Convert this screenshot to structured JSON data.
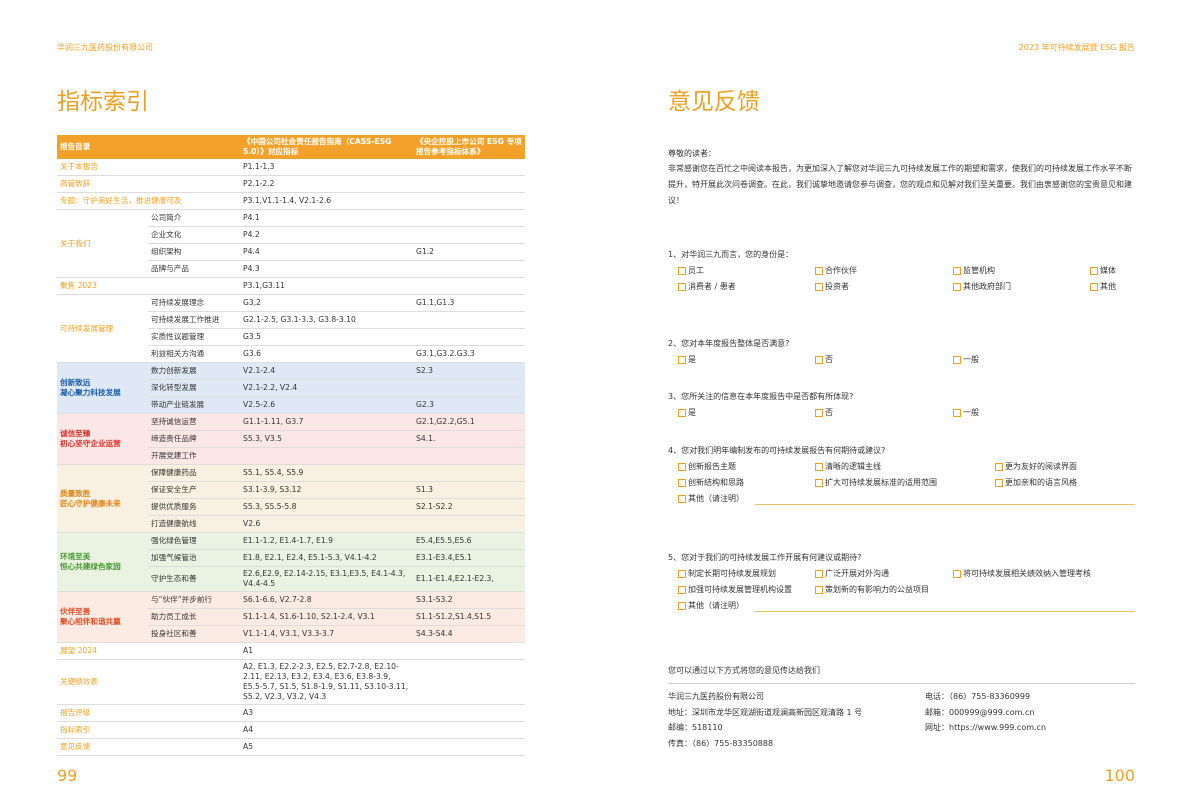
{
  "header": {
    "company": "华润三九医药股份有限公司",
    "report": "2023 年可持续发展暨 ESG 报告"
  },
  "index_page": {
    "title": "指标索引",
    "page_number": "99",
    "table": {
      "headers": [
        "报告目录",
        "《中国公司社会责任报告指南（CASS-ESG 5.0）》对应指标",
        "《央企控股上市公司 ESG 专项报告参考指标体系》"
      ],
      "sections": [
        {
          "title": "关于本报告",
          "cass": "P1.1-1.3"
        },
        {
          "title": "高管致辞",
          "cass": "P2.1-2.2"
        },
        {
          "title": "专题：守护美好生活，推进健康可及",
          "cass": "P3.1,V1.1-1.4, V2.1-2.6"
        },
        {
          "title": "关于我们",
          "items": [
            {
              "item": "公司简介",
              "cass": "P4.1"
            },
            {
              "item": "企业文化",
              "cass": "P4.2"
            },
            {
              "item": "组织架构",
              "cass": "P4.4",
              "sase": "G1.2"
            },
            {
              "item": "品牌与产品",
              "cass": "P4.3"
            }
          ]
        },
        {
          "title": "聚焦 2023",
          "cass": "P3.1,G3.11"
        },
        {
          "title": "可持续发展管理",
          "items": [
            {
              "item": "可持续发展理念",
              "cass": "G3,2",
              "sase": "G1.1,G1.3"
            },
            {
              "item": "可持续发展工作推进",
              "cass": "G2.1-2.5, G3.1-3.3, G3.8-3.10"
            },
            {
              "item": "实质性议题管理",
              "cass": "G3.5"
            },
            {
              "item": "利益相关方沟通",
              "cass": "G3.6",
              "sase": "G3.1,G3.2.G3.3"
            }
          ]
        },
        {
          "title": "创新致远\n凝心聚力科技发展",
          "color": "#1b5ca8",
          "background": "#dfe9f5",
          "items": [
            {
              "item": "数力创新发展",
              "cass": "V2.1-2.4",
              "sase": "S2.3"
            },
            {
              "item": "深化转型发展",
              "cass": "V2.1-2.2, V2.4"
            },
            {
              "item": "带动产业链发展",
              "cass": "V2.5-2.6",
              "sase": "G2.3"
            }
          ]
        },
        {
          "title": "诚信至臻\n初心坚守企业运营",
          "color": "#d8322b",
          "background": "#fbe7e6",
          "items": [
            {
              "item": "坚持诚信运营",
              "cass": "G1.1-1.11, G3.7",
              "sase": "G2.1,G2.2,G5.1"
            },
            {
              "item": "缔造责任品牌",
              "cass": "S5.3, V3.5",
              "sase": "S4.1."
            },
            {
              "item": "开展党建工作"
            }
          ]
        },
        {
          "title": "质量致胜\n匠心守护健康未来",
          "color": "#e0861a",
          "background": "#f8f0e1",
          "items": [
            {
              "item": "保障健康药品",
              "cass": "S5.1, S5.4, S5.9"
            },
            {
              "item": "保证安全生产",
              "cass": "S3.1-3.9, S3.12",
              "sase": "S1.3"
            },
            {
              "item": "提供优质服务",
              "cass": "S5.3, S5.5-5.8",
              "sase": "S2.1-S2.2"
            },
            {
              "item": "打造健康航线",
              "cass": "V2.6"
            }
          ]
        },
        {
          "title": "环境至美\n恒心共建绿色家园",
          "color": "#4c9a37",
          "background": "#eaf3e2",
          "items": [
            {
              "item": "强化绿色管理",
              "cass": "E1.1-1.2, E1.4-1.7, E1.9",
              "sase": "E5.4,E5.5,E5.6"
            },
            {
              "item": "加强气候管治",
              "cass": "E1.8, E2.1, E2.4, E5.1-5.3, V4.1-4.2",
              "sase": "E3.1-E3.4,E5.1"
            },
            {
              "item": "守护生态和善",
              "cass": "E2.6,E2.9, E2.14-2.15, E3.1,E3.5, E4.1-4.3, V4.4-4.5",
              "sase": "E1.1-E1.4,E2.1-E2.3,"
            }
          ]
        },
        {
          "title": "伙伴至善\n聚心相伴和谐共赢",
          "color": "#e0522a",
          "background": "#fbebe3",
          "items": [
            {
              "item": "与“伙伴”并步前行",
              "cass": "S6.1-6.6, V2.7-2.8",
              "sase": "S3.1-S3.2"
            },
            {
              "item": "助力员工成长",
              "cass": "S1.1-1.4, S1.6-1.10, S2.1-2.4, V3.1",
              "sase": "S1.1-S1.2,S1.4,S1.5"
            },
            {
              "item": "投身社区和善",
              "cass": "V1.1-1.4, V3.1, V3.3-3.7",
              "sase": "S4.3-S4.4"
            }
          ]
        },
        {
          "title": "展望 2024",
          "cass": "A1"
        },
        {
          "title": "关键绩效表",
          "cass": "A2, E1.3, E2.2-2.3, E2.5, E2.7-2.8, E2.10-2.11, E2.13, E3.2, E3.4, E3.6, E3.8-3.9, E5.5-5.7, S1.5, S1.8-1.9, S1.11, S3.10-3.11, S5.2, V2.3, V3.2,  V4.3"
        },
        {
          "title": "报告评级",
          "cass": "A3"
        },
        {
          "title": "指标索引",
          "cass": "A4"
        },
        {
          "title": "意见反馈",
          "cass": "A5"
        }
      ]
    }
  },
  "feedback_page": {
    "title": "意见反馈",
    "page_number": "100",
    "greeting": "尊敬的读者：",
    "intro": "非常感谢您在百忙之中阅读本报告，为更加深入了解您对华润三九可持续发展工作的期望和需求，使我们的可持续发展工作水平不断提升，特开展此次问卷调查。在此，我们诚挚地邀请您参与调查，您的观点和见解对我们至关重要。我们由衷感谢您的宝贵意见和建议！",
    "questions": [
      {
        "question": "1、对华润三九而言，您的身份是：",
        "options": [
          "员工",
          "合作伙伴",
          "监管机构",
          "媒体",
          "消费者 / 患者",
          "投资者",
          "其他政府部门",
          "其他"
        ]
      },
      {
        "question": "2、您对本年度报告整体是否满意?",
        "options": [
          "是",
          "否",
          "一般"
        ]
      },
      {
        "question": "3、您所关注的信息在本年度报告中是否都有所体现?",
        "options": [
          "是",
          "否",
          "一般"
        ]
      },
      {
        "question": "4、您对我们明年编制发布的可持续发展报告有何期待或建议?",
        "options": [
          "创新报告主题",
          "清晰的逻辑主线",
          "更为友好的阅读界面",
          "创新结构和思路",
          "扩大可持续发展标准的适用范围",
          "更加亲和的语言风格"
        ],
        "other": "其他（请注明）"
      },
      {
        "question": "5、您对于我们的可持续发展工作开展有何建议或期待?",
        "options": [
          "制定长期可持续发展规划",
          "广泛开展对外沟通",
          "将可持续发展相关绩效纳入管理考核",
          "加强可持续发展管理机构设置",
          "策划新的有影响力的公益项目"
        ],
        "other": "其他（请注明）"
      }
    ],
    "contact": {
      "prompt": "您可以通过以下方式将您的意见传达给我们",
      "left": [
        "华润三九医药股份有限公司",
        "地址：深圳市龙华区观湖街道观澜高新园区观清路 1 号",
        "邮编：518110",
        "传真：（86）755-83350888"
      ],
      "right": [
        "电话：（86）755-83360999",
        "邮箱：000999@999.com.cn",
        "网址：https://www.999.com.cn"
      ]
    }
  }
}
